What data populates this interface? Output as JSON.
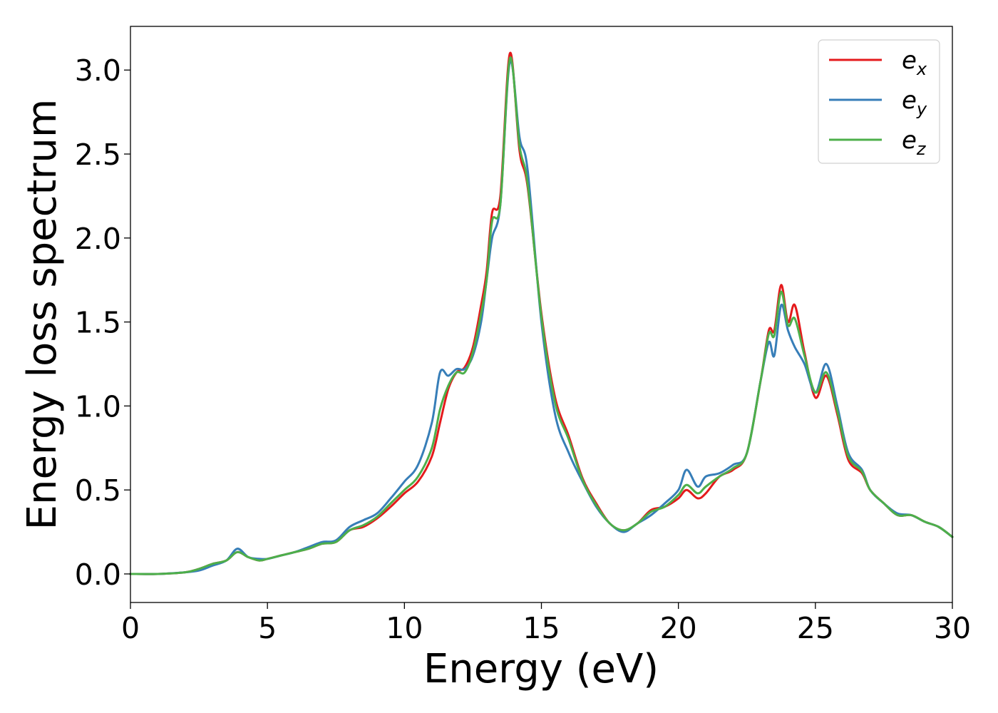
{
  "chart_data": {
    "type": "line",
    "title": "",
    "xlabel": "Energy (eV)",
    "ylabel": "Energy loss spectrum",
    "xlim": [
      0,
      30
    ],
    "ylim": [
      -0.17,
      3.26
    ],
    "xticks": [
      0,
      5,
      10,
      15,
      20,
      25,
      30
    ],
    "xtick_labels": [
      "0",
      "5",
      "10",
      "15",
      "20",
      "25",
      "30"
    ],
    "yticks": [
      0.0,
      0.5,
      1.0,
      1.5,
      2.0,
      2.5,
      3.0
    ],
    "ytick_labels": [
      "0.0",
      "0.5",
      "1.0",
      "1.5",
      "2.0",
      "2.5",
      "3.0"
    ],
    "grid": false,
    "legend_position": "top-right",
    "x": [
      0,
      1,
      2,
      2.5,
      3,
      3.5,
      3.9,
      4.3,
      4.7,
      5,
      5.5,
      6,
      6.5,
      7,
      7.5,
      8,
      8.5,
      9,
      9.5,
      10,
      10.5,
      11,
      11.3,
      11.6,
      11.9,
      12.2,
      12.5,
      12.8,
      13.0,
      13.2,
      13.5,
      13.85,
      14.2,
      14.5,
      15,
      15.5,
      16,
      16.5,
      17,
      17.5,
      18,
      18.5,
      19,
      19.5,
      20,
      20.3,
      20.7,
      21,
      21.5,
      22,
      22.5,
      23,
      23.3,
      23.5,
      23.75,
      24,
      24.25,
      24.6,
      25,
      25.4,
      25.8,
      26.2,
      26.7,
      27,
      27.5,
      28,
      28.5,
      29,
      29.5,
      30
    ],
    "series": [
      {
        "name": "e_x",
        "label_base": "e",
        "label_sub": "x",
        "color": "#e41a1c",
        "values": [
          0.0,
          0.0,
          0.01,
          0.03,
          0.06,
          0.08,
          0.13,
          0.1,
          0.08,
          0.09,
          0.11,
          0.13,
          0.15,
          0.18,
          0.19,
          0.26,
          0.28,
          0.33,
          0.4,
          0.48,
          0.55,
          0.7,
          0.9,
          1.1,
          1.2,
          1.23,
          1.35,
          1.6,
          1.8,
          2.15,
          2.25,
          3.1,
          2.52,
          2.3,
          1.55,
          1.05,
          0.82,
          0.57,
          0.42,
          0.3,
          0.26,
          0.3,
          0.38,
          0.4,
          0.45,
          0.5,
          0.45,
          0.48,
          0.58,
          0.62,
          0.72,
          1.15,
          1.45,
          1.45,
          1.72,
          1.5,
          1.6,
          1.32,
          1.05,
          1.18,
          0.95,
          0.68,
          0.6,
          0.5,
          0.42,
          0.35,
          0.35,
          0.31,
          0.28,
          0.22
        ]
      },
      {
        "name": "e_y",
        "label_base": "e",
        "label_sub": "y",
        "color": "#377eb8",
        "values": [
          0.0,
          0.0,
          0.01,
          0.02,
          0.05,
          0.08,
          0.15,
          0.1,
          0.09,
          0.09,
          0.11,
          0.13,
          0.16,
          0.19,
          0.2,
          0.28,
          0.32,
          0.36,
          0.45,
          0.55,
          0.65,
          0.9,
          1.2,
          1.18,
          1.22,
          1.22,
          1.3,
          1.5,
          1.75,
          2.0,
          2.2,
          3.05,
          2.6,
          2.4,
          1.5,
          0.95,
          0.72,
          0.55,
          0.4,
          0.3,
          0.25,
          0.3,
          0.35,
          0.42,
          0.5,
          0.62,
          0.52,
          0.58,
          0.6,
          0.65,
          0.72,
          1.15,
          1.38,
          1.3,
          1.6,
          1.45,
          1.35,
          1.25,
          1.08,
          1.25,
          1.0,
          0.72,
          0.62,
          0.5,
          0.42,
          0.36,
          0.35,
          0.31,
          0.28,
          0.22
        ]
      },
      {
        "name": "e_z",
        "label_base": "e",
        "label_sub": "z",
        "color": "#4daf4a",
        "values": [
          0.0,
          0.0,
          0.01,
          0.03,
          0.06,
          0.08,
          0.13,
          0.1,
          0.08,
          0.09,
          0.11,
          0.13,
          0.15,
          0.18,
          0.19,
          0.26,
          0.29,
          0.34,
          0.42,
          0.5,
          0.58,
          0.75,
          0.98,
          1.12,
          1.2,
          1.2,
          1.32,
          1.55,
          1.75,
          2.1,
          2.2,
          3.07,
          2.55,
          2.32,
          1.53,
          1.02,
          0.8,
          0.56,
          0.41,
          0.3,
          0.26,
          0.3,
          0.37,
          0.4,
          0.47,
          0.53,
          0.48,
          0.52,
          0.58,
          0.63,
          0.72,
          1.15,
          1.43,
          1.42,
          1.68,
          1.48,
          1.52,
          1.3,
          1.08,
          1.2,
          0.97,
          0.7,
          0.61,
          0.5,
          0.42,
          0.35,
          0.35,
          0.31,
          0.28,
          0.22
        ]
      }
    ]
  }
}
